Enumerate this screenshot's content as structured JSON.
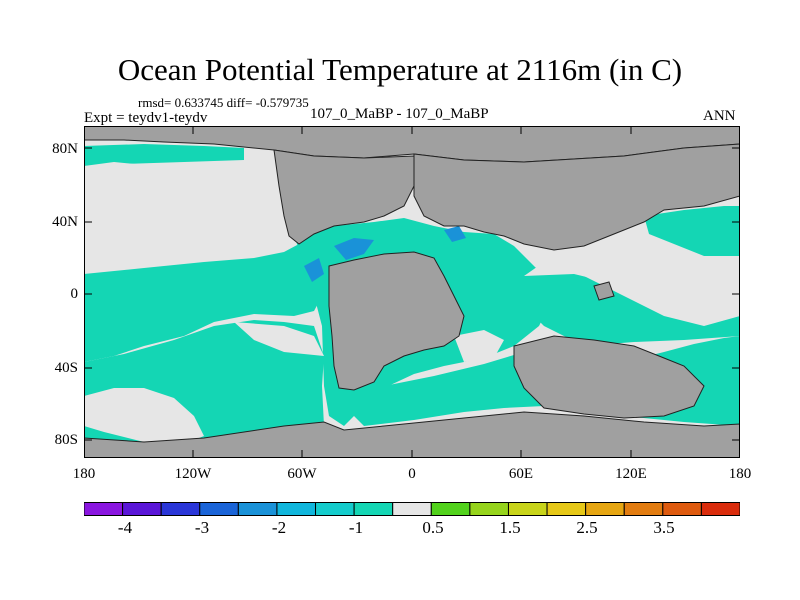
{
  "title": "Ocean Potential Temperature at 2116m (in C)",
  "stats": "rmsd= 0.633745 diff= -0.579735",
  "experiment": "Expt = teydv1-teydv",
  "case_label": "107_0_MaBP - 107_0_MaBP",
  "period": "ANN",
  "lat_ticks": [
    "80N",
    "40N",
    "0",
    "40S",
    "80S"
  ],
  "lon_ticks": [
    "180",
    "120W",
    "60W",
    "0",
    "60E",
    "120E",
    "180"
  ],
  "colorbar": {
    "colors": [
      "#8a16e0",
      "#5a16d8",
      "#2a36d8",
      "#1a64d8",
      "#1a92d8",
      "#10b6dc",
      "#14cccc",
      "#14d6b4",
      "#e6e6e6",
      "#52d21c",
      "#96d41c",
      "#c8d41a",
      "#e6c818",
      "#e6a612",
      "#e27c10",
      "#de5a0e",
      "#da2c0c"
    ],
    "labels": [
      "-4",
      "-3",
      "-2",
      "-1",
      "0.5",
      "1.5",
      "2.5",
      "3.5"
    ]
  },
  "map_colors": {
    "land": "#a0a0a0",
    "anomaly": "#14d6b4",
    "neutral": "#e6e6e6",
    "cold": "#1a92d8"
  }
}
